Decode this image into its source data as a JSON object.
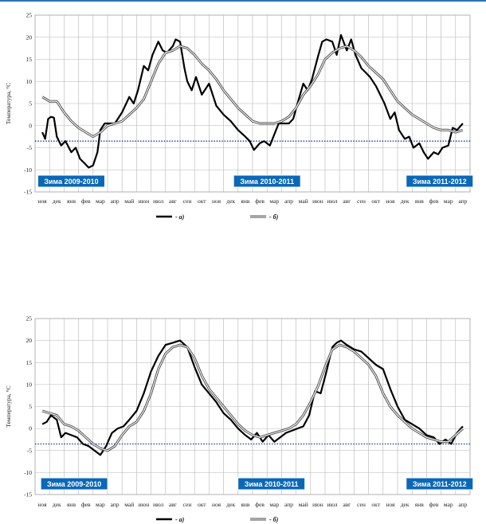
{
  "chart_data": [
    {
      "type": "line",
      "ylabel": "Температура, °С",
      "ylim": [
        -15,
        25
      ],
      "yticks": [
        -15,
        -10,
        -5,
        0,
        5,
        10,
        15,
        20,
        25
      ],
      "grid": true,
      "categories": [
        "ноя",
        "дек",
        "янв",
        "фев",
        "мар",
        "апр",
        "май",
        "июн",
        "июл",
        "авг",
        "сен",
        "окт",
        "ноя",
        "дек",
        "янв",
        "фев",
        "мар",
        "апр",
        "май",
        "июн",
        "июл",
        "авг",
        "сен",
        "окт",
        "ноя",
        "дек",
        "янв",
        "фев",
        "мар",
        "апр"
      ],
      "threshold": -3.5,
      "winters": [
        {
          "label": "Зима 2009-2010",
          "at": 2.0
        },
        {
          "label": "Зима 2010-2011",
          "at": 15.5
        },
        {
          "label": "Зима 2011-2012",
          "at": 27.4
        }
      ],
      "legend": {
        "a": "- а)",
        "b": "- б)"
      },
      "series": [
        {
          "name": "а)",
          "style": "thick-black",
          "x": [
            0,
            0.2,
            0.4,
            0.6,
            0.8,
            1.0,
            1.3,
            1.6,
            2.0,
            2.3,
            2.6,
            2.9,
            3.2,
            3.5,
            3.8,
            4.0,
            4.3,
            4.6,
            5.0,
            5.5,
            6.0,
            6.3,
            6.6,
            7.0,
            7.3,
            7.6,
            8.0,
            8.3,
            8.6,
            9.0,
            9.2,
            9.5,
            9.8,
            10.0,
            10.3,
            10.6,
            11.0,
            11.5,
            12.0,
            12.5,
            13.0,
            13.5,
            14.0,
            14.3,
            14.6,
            15.0,
            15.3,
            15.7,
            16.0,
            16.3,
            16.6,
            17.0,
            17.3,
            17.6,
            18.0,
            18.3,
            18.6,
            19.0,
            19.3,
            19.6,
            20.0,
            20.3,
            20.6,
            21.0,
            21.3,
            21.6,
            22.0,
            22.3,
            22.6,
            23.0,
            23.3,
            23.6,
            24.0,
            24.3,
            24.6,
            25.0,
            25.3,
            25.6,
            26.0,
            26.3,
            26.6,
            27.0,
            27.3,
            27.6,
            28.0,
            28.3,
            28.6,
            29.0
          ],
          "values": [
            -1.5,
            -3.0,
            1.5,
            2.0,
            1.8,
            -2.5,
            -4.5,
            -3.5,
            -6.0,
            -5.0,
            -7.5,
            -8.5,
            -9.5,
            -9.0,
            -6.0,
            -1.0,
            0.5,
            0.5,
            0.5,
            3.0,
            6.5,
            5.0,
            8.0,
            13.5,
            12.5,
            16.0,
            19.0,
            17.0,
            16.5,
            18.0,
            19.5,
            19.0,
            13.0,
            10.0,
            8.0,
            11.0,
            7.0,
            9.5,
            4.5,
            2.5,
            1.0,
            -1.0,
            -2.5,
            -3.5,
            -5.5,
            -4.0,
            -3.5,
            -4.5,
            -2.0,
            0.5,
            0.5,
            0.5,
            1.5,
            5.0,
            9.5,
            8.0,
            10.5,
            15.5,
            19.0,
            19.5,
            19.0,
            16.0,
            20.5,
            17.0,
            19.5,
            16.0,
            13.0,
            12.0,
            11.0,
            9.0,
            7.0,
            5.0,
            1.5,
            3.0,
            -1.0,
            -3.0,
            -2.5,
            -5.0,
            -4.0,
            -6.0,
            -7.5,
            -6.0,
            -6.5,
            -5.0,
            -4.5,
            -0.5,
            -1.0,
            0.5
          ]
        },
        {
          "name": "б)",
          "style": "double-gray",
          "x": [
            0,
            0.5,
            1.0,
            1.5,
            2.0,
            2.5,
            3.0,
            3.5,
            4.0,
            4.5,
            5.0,
            5.5,
            6.0,
            6.5,
            7.0,
            7.5,
            8.0,
            8.5,
            9.0,
            9.5,
            10.0,
            10.5,
            11.0,
            11.5,
            12.0,
            12.5,
            13.0,
            13.5,
            14.0,
            14.5,
            15.0,
            15.5,
            16.0,
            16.5,
            17.0,
            17.5,
            18.0,
            18.5,
            19.0,
            19.5,
            20.0,
            20.5,
            21.0,
            21.5,
            22.0,
            22.5,
            23.0,
            23.5,
            24.0,
            24.5,
            25.0,
            25.5,
            26.0,
            26.5,
            27.0,
            27.5,
            28.0,
            28.5,
            29.0
          ],
          "values": [
            6.5,
            5.5,
            5.5,
            3.0,
            1.0,
            -0.5,
            -1.5,
            -2.5,
            -1.5,
            0.0,
            0.5,
            1.0,
            2.5,
            4.0,
            6.0,
            10.0,
            14.0,
            16.5,
            17.0,
            18.0,
            17.5,
            16.0,
            14.0,
            12.5,
            10.5,
            8.0,
            6.0,
            4.0,
            2.5,
            1.0,
            0.5,
            0.5,
            0.5,
            1.0,
            2.0,
            4.0,
            7.0,
            9.0,
            11.5,
            15.0,
            16.5,
            17.5,
            18.0,
            17.0,
            15.5,
            13.5,
            12.0,
            10.5,
            8.0,
            5.5,
            4.0,
            2.5,
            1.5,
            0.5,
            -0.5,
            -1.0,
            -1.0,
            -1.5,
            -1.0
          ]
        }
      ]
    },
    {
      "type": "line",
      "ylabel": "Температура, °С",
      "ylim": [
        -15,
        25
      ],
      "yticks": [
        -15,
        -10,
        -5,
        0,
        5,
        10,
        15,
        20,
        25
      ],
      "grid": true,
      "categories": [
        "ноя",
        "дек",
        "янв",
        "фев",
        "мар",
        "апр",
        "май",
        "июн",
        "июл",
        "авг",
        "сен",
        "окт",
        "ноя",
        "дек",
        "янв",
        "фев",
        "мар",
        "апр",
        "май",
        "июн",
        "июл",
        "авг",
        "сен",
        "окт",
        "ноя",
        "дек",
        "янв",
        "фев",
        "мар",
        "апр"
      ],
      "threshold": -3.5,
      "winters": [
        {
          "label": "Зима 2009-2010",
          "at": 2.2
        },
        {
          "label": "Зима 2010-2011",
          "at": 15.8
        },
        {
          "label": "Зима 2011-2012",
          "at": 27.4
        }
      ],
      "legend": {
        "a": "- а)",
        "b": "- б)"
      },
      "series": [
        {
          "name": "а)",
          "style": "thick-black",
          "x": [
            0,
            0.3,
            0.6,
            1.0,
            1.3,
            1.6,
            2.0,
            2.4,
            2.8,
            3.2,
            3.6,
            4.0,
            4.4,
            4.8,
            5.2,
            5.6,
            6.0,
            6.5,
            7.0,
            7.5,
            8.0,
            8.5,
            9.0,
            9.5,
            10.0,
            10.5,
            11.0,
            11.5,
            12.0,
            12.5,
            13.0,
            13.5,
            14.0,
            14.4,
            14.8,
            15.2,
            15.6,
            16.0,
            16.4,
            16.8,
            17.2,
            17.6,
            18.0,
            18.4,
            18.8,
            19.2,
            19.6,
            20.0,
            20.3,
            20.6,
            21.0,
            21.5,
            22.0,
            22.5,
            23.0,
            23.5,
            24.0,
            24.5,
            25.0,
            25.5,
            26.0,
            26.5,
            27.0,
            27.4,
            27.8,
            28.2,
            28.6,
            29.0
          ],
          "values": [
            1.0,
            1.5,
            3.0,
            2.0,
            -2.0,
            -1.0,
            -1.5,
            -2.0,
            -3.5,
            -4.0,
            -5.0,
            -6.0,
            -4.0,
            -1.0,
            0.0,
            0.5,
            2.0,
            4.0,
            8.0,
            13.0,
            16.5,
            19.0,
            19.5,
            20.0,
            18.5,
            14.0,
            10.0,
            8.0,
            6.0,
            3.5,
            2.0,
            0.0,
            -1.5,
            -2.5,
            -1.0,
            -3.0,
            -1.5,
            -3.0,
            -2.0,
            -1.0,
            -0.5,
            0.0,
            0.5,
            3.0,
            8.5,
            8.0,
            13.0,
            18.5,
            19.5,
            20.0,
            19.0,
            18.0,
            17.5,
            16.0,
            14.5,
            13.5,
            9.0,
            5.0,
            2.0,
            1.0,
            0.0,
            -1.5,
            -2.0,
            -3.5,
            -2.5,
            -3.5,
            -1.0,
            0.5
          ]
        },
        {
          "name": "б)",
          "style": "double-gray",
          "x": [
            0,
            0.5,
            1.0,
            1.5,
            2.0,
            2.5,
            3.0,
            3.5,
            4.0,
            4.5,
            5.0,
            5.5,
            6.0,
            6.5,
            7.0,
            7.5,
            8.0,
            8.5,
            9.0,
            9.5,
            10.0,
            10.5,
            11.0,
            11.5,
            12.0,
            12.5,
            13.0,
            13.5,
            14.0,
            14.5,
            15.0,
            15.5,
            16.0,
            16.5,
            17.0,
            17.5,
            18.0,
            18.5,
            19.0,
            19.5,
            20.0,
            20.5,
            21.0,
            21.5,
            22.0,
            22.5,
            23.0,
            23.5,
            24.0,
            24.5,
            25.0,
            25.5,
            26.0,
            26.5,
            27.0,
            27.5,
            28.0,
            28.5,
            29.0
          ],
          "values": [
            4.0,
            3.5,
            3.0,
            1.0,
            0.5,
            -0.5,
            -2.0,
            -3.5,
            -4.5,
            -5.0,
            -4.0,
            -1.5,
            0.5,
            1.5,
            4.0,
            8.0,
            13.5,
            17.0,
            18.5,
            19.0,
            18.5,
            16.0,
            12.0,
            9.0,
            7.0,
            5.0,
            3.0,
            1.0,
            -0.5,
            -1.5,
            -2.0,
            -1.5,
            -1.0,
            -0.5,
            0.0,
            1.0,
            3.0,
            6.0,
            9.5,
            14.0,
            18.0,
            19.0,
            18.5,
            17.5,
            16.0,
            14.5,
            12.0,
            8.0,
            5.0,
            3.0,
            1.5,
            0.0,
            -1.0,
            -2.0,
            -2.5,
            -3.0,
            -3.0,
            -1.5,
            0.0
          ]
        }
      ]
    }
  ]
}
